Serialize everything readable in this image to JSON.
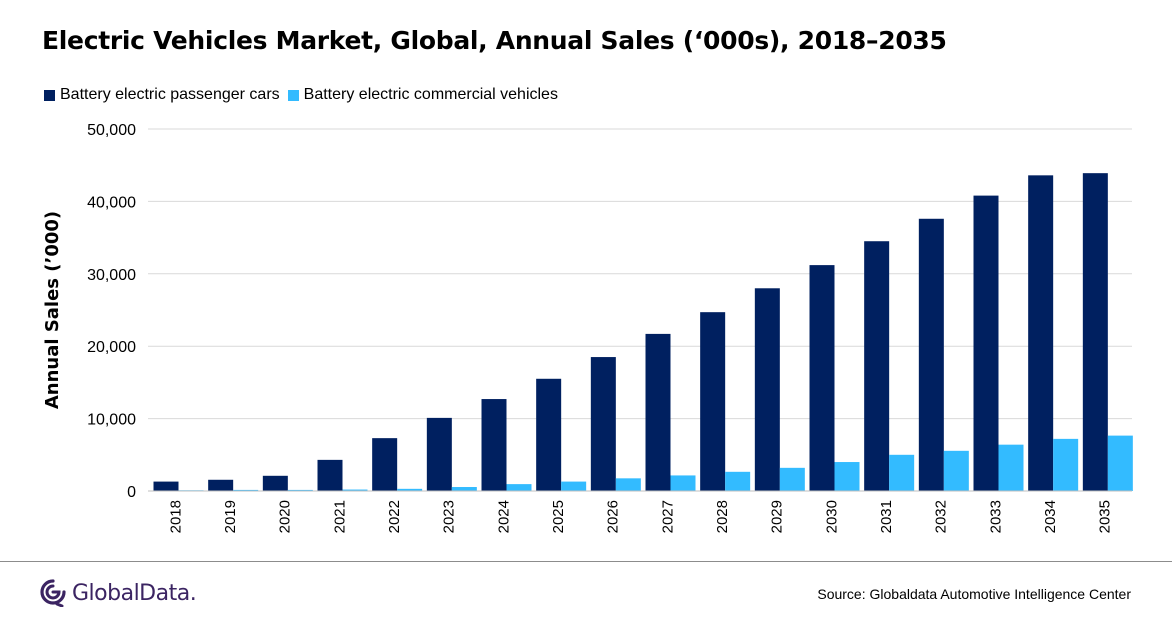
{
  "chart_data": {
    "type": "bar",
    "title": "Electric Vehicles Market, Global, Annual Sales (‘000s), 2018–2035",
    "ylabel": "Annual Sales (’000)",
    "xlabel": "",
    "ylim": [
      0,
      50000
    ],
    "yticks": [
      0,
      10000,
      20000,
      30000,
      40000,
      50000
    ],
    "ytick_labels": [
      "0",
      "10,000",
      "20,000",
      "30,000",
      "40,000",
      "50,000"
    ],
    "grid": true,
    "legend": "top-left",
    "categories": [
      "2018",
      "2019",
      "2020",
      "2021",
      "2022",
      "2023",
      "2024",
      "2025",
      "2026",
      "2027",
      "2028",
      "2029",
      "2030",
      "2031",
      "2032",
      "2033",
      "2034",
      "2035"
    ],
    "series": [
      {
        "name": "Battery electric passenger cars",
        "color": "#002060",
        "values": [
          1300,
          1550,
          2100,
          4300,
          7300,
          10100,
          12700,
          15500,
          18500,
          21700,
          24700,
          28000,
          31200,
          34500,
          37600,
          40800,
          43600,
          43900
        ]
      },
      {
        "name": "Battery electric commercial vehicles",
        "color": "#33bbff",
        "values": [
          100,
          150,
          150,
          200,
          300,
          550,
          950,
          1300,
          1750,
          2150,
          2650,
          3200,
          4000,
          5000,
          5550,
          6400,
          7200,
          7650
        ]
      }
    ]
  },
  "footer": {
    "logo_text": "GlobalData.",
    "source": "Source:  Globaldata Automotive  Intelligence Center"
  },
  "colors": {
    "logo": "#3b2462",
    "gridline": "#d9d9d9",
    "axis": "#bfbfbf"
  }
}
